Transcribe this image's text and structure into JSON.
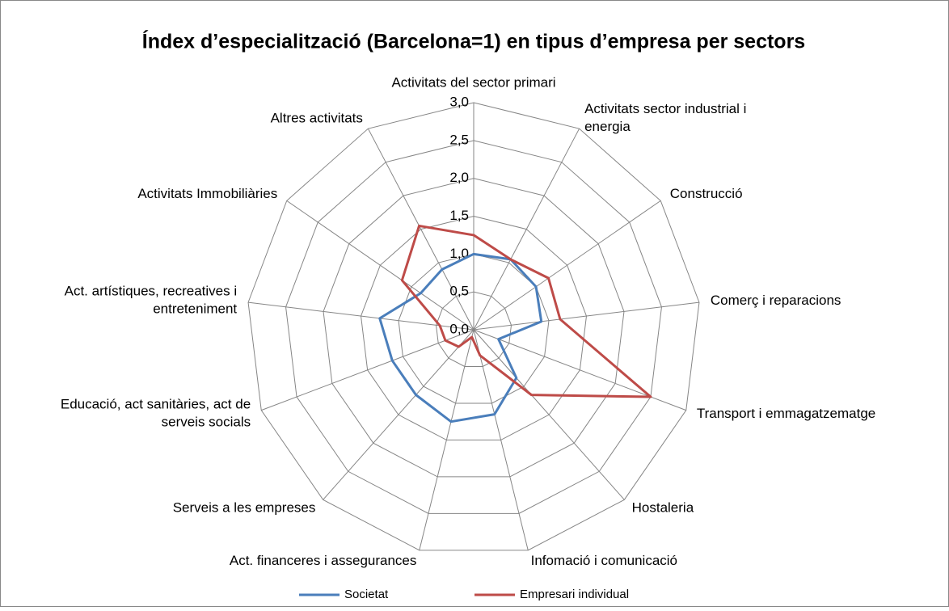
{
  "chart_data": {
    "type": "radar",
    "title": "Índex d’especialització (Barcelona=1) en tipus d’empresa per sectors",
    "categories": [
      "Activitats del sector primari",
      "Activitats sector industrial i energia",
      "Construcció",
      "Comerç i reparacions",
      "Transport i emmagatzematge",
      "Hostaleria",
      "Infomació i comunicació",
      "Act. financeres i assegurances",
      "Serveis a les empreses",
      "Educació, act sanitàries, act de serveis socials",
      "Act. artístiques, recreatives i entreteniment",
      "Activitats Immobiliàries",
      "Altres activitats"
    ],
    "series": [
      {
        "name": "Societat",
        "color": "#4a7ebb",
        "values": [
          1.0,
          1.05,
          1.0,
          0.9,
          0.35,
          0.85,
          1.15,
          1.25,
          1.15,
          1.15,
          1.25,
          0.85,
          0.9
        ]
      },
      {
        "name": "Empresari individual",
        "color": "#be4b48",
        "values": [
          1.25,
          1.05,
          1.2,
          1.15,
          2.5,
          1.15,
          0.35,
          0.1,
          0.3,
          0.4,
          0.45,
          1.15,
          1.55
        ]
      }
    ],
    "ylim": [
      0,
      3
    ],
    "yticks": [
      {
        "value": 0,
        "label": "0,0"
      },
      {
        "value": 0.5,
        "label": "0,5"
      },
      {
        "value": 1,
        "label": "1,0"
      },
      {
        "value": 1.5,
        "label": "1,5"
      },
      {
        "value": 2,
        "label": "2,0"
      },
      {
        "value": 2.5,
        "label": "2,5"
      },
      {
        "value": 3,
        "label": "3,0"
      }
    ],
    "grid": true,
    "legend": "bottom"
  }
}
